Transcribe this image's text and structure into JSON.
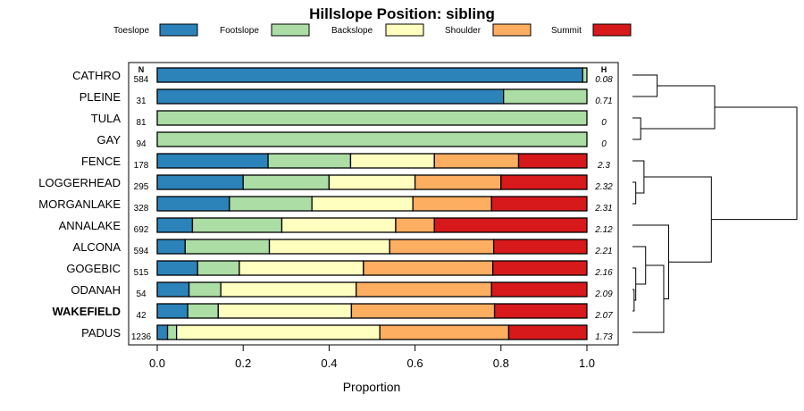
{
  "chart_data": {
    "type": "bar",
    "orientation": "horizontal",
    "stacked": true,
    "title": "Hillslope Position: sibling",
    "xlabel": "Proportion",
    "xlim": [
      0,
      1
    ],
    "xticks": [
      "0.0",
      "0.2",
      "0.4",
      "0.6",
      "0.8",
      "1.0"
    ],
    "n_header": "N",
    "h_header": "H",
    "legend_position": "top",
    "series": [
      {
        "name": "Toeslope",
        "color": "#2b83ba"
      },
      {
        "name": "Footslope",
        "color": "#abdda4"
      },
      {
        "name": "Backslope",
        "color": "#ffffbf"
      },
      {
        "name": "Shoulder",
        "color": "#fdae61"
      },
      {
        "name": "Summit",
        "color": "#d7191c"
      }
    ],
    "categories": [
      {
        "name": "CATHRO",
        "n": "584",
        "h": "0.08",
        "values": [
          0.99,
          0.01,
          0,
          0,
          0
        ],
        "highlight": false
      },
      {
        "name": "PLEINE",
        "n": "31",
        "h": "0.71",
        "values": [
          0.806,
          0.194,
          0,
          0,
          0
        ],
        "highlight": false
      },
      {
        "name": "TULA",
        "n": "81",
        "h": "0",
        "values": [
          0,
          1.0,
          0,
          0,
          0
        ],
        "highlight": false
      },
      {
        "name": "GAY",
        "n": "94",
        "h": "0",
        "values": [
          0,
          1.0,
          0,
          0,
          0
        ],
        "highlight": false
      },
      {
        "name": "FENCE",
        "n": "178",
        "h": "2.3",
        "values": [
          0.258,
          0.192,
          0.195,
          0.196,
          0.159
        ],
        "highlight": false
      },
      {
        "name": "LOGGERHEAD",
        "n": "295",
        "h": "2.32",
        "values": [
          0.2,
          0.2,
          0.2,
          0.2,
          0.2
        ],
        "highlight": false
      },
      {
        "name": "MORGANLAKE",
        "n": "328",
        "h": "2.31",
        "values": [
          0.168,
          0.192,
          0.235,
          0.183,
          0.222
        ],
        "highlight": false
      },
      {
        "name": "ANNALAKE",
        "n": "692",
        "h": "2.12",
        "values": [
          0.082,
          0.208,
          0.265,
          0.09,
          0.355
        ],
        "highlight": false
      },
      {
        "name": "ALCONA",
        "n": "594",
        "h": "2.21",
        "values": [
          0.065,
          0.196,
          0.28,
          0.242,
          0.217
        ],
        "highlight": false
      },
      {
        "name": "GOGEBIC",
        "n": "515",
        "h": "2.16",
        "values": [
          0.094,
          0.097,
          0.289,
          0.301,
          0.219
        ],
        "highlight": false
      },
      {
        "name": "ODANAH",
        "n": "54",
        "h": "2.09",
        "values": [
          0.074,
          0.074,
          0.315,
          0.315,
          0.222
        ],
        "highlight": false
      },
      {
        "name": "WAKEFIELD",
        "n": "42",
        "h": "2.07",
        "values": [
          0.071,
          0.071,
          0.31,
          0.333,
          0.215
        ],
        "highlight": true
      },
      {
        "name": "PADUS",
        "n": "1236",
        "h": "1.73",
        "values": [
          0.024,
          0.021,
          0.473,
          0.3,
          0.182
        ],
        "highlight": false
      }
    ],
    "dendrogram": {
      "merges": [
        {
          "a": 0,
          "b": 1,
          "height": 0.15
        },
        {
          "a": 2,
          "b": 3,
          "height": 0.05
        },
        {
          "a": 5,
          "b": 6,
          "height": 0.02
        },
        {
          "a": 4,
          "b": "m2",
          "height": 0.07
        },
        {
          "a": 10,
          "b": 11,
          "height": 0.01
        },
        {
          "a": 9,
          "b": "m4",
          "height": 0.02
        },
        {
          "a": 8,
          "b": "m5",
          "height": 0.08
        },
        {
          "a": 12,
          "b": "m6",
          "height": 0.19
        },
        {
          "a": 7,
          "b": "m7",
          "height": 0.22
        },
        {
          "a": "m3",
          "b": "m8",
          "height": 0.48
        },
        {
          "a": "m0",
          "b": "m1",
          "height": 0.5
        },
        {
          "a": "m10",
          "b": "m9",
          "height": 1.0
        }
      ]
    }
  }
}
